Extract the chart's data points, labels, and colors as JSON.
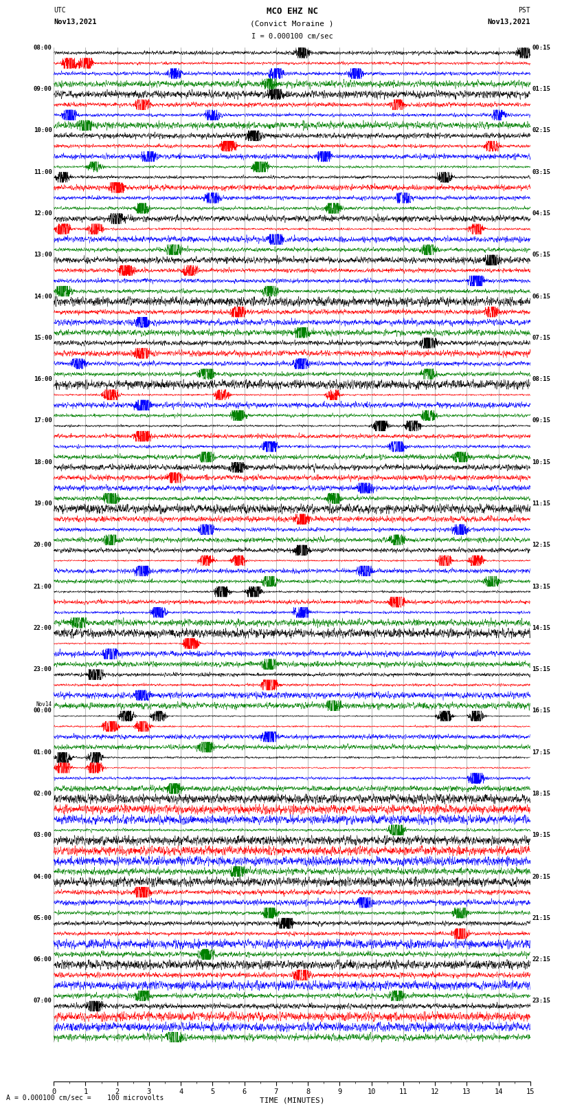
{
  "title_line1": "MCO EHZ NC",
  "title_line2": "(Convict Moraine )",
  "title_line3": "I = 0.000100 cm/sec",
  "left_header_line1": "UTC",
  "left_header_line2": "Nov13,2021",
  "right_header_line1": "PST",
  "right_header_line2": "Nov13,2021",
  "xlabel": "TIME (MINUTES)",
  "scale_label": "= 0.000100 cm/sec =    100 microvolts",
  "scale_prefix": "A",
  "bg_color": "#ffffff",
  "line_colors": [
    "#000000",
    "#ff0000",
    "#0000ff",
    "#008000"
  ],
  "utc_labels": [
    "08:00",
    "09:00",
    "10:00",
    "11:00",
    "12:00",
    "13:00",
    "14:00",
    "15:00",
    "16:00",
    "17:00",
    "18:00",
    "19:00",
    "20:00",
    "21:00",
    "22:00",
    "23:00",
    "Nov14\n00:00",
    "01:00",
    "02:00",
    "03:00",
    "04:00",
    "05:00",
    "06:00",
    "07:00"
  ],
  "pst_labels": [
    "00:15",
    "01:15",
    "02:15",
    "03:15",
    "04:15",
    "05:15",
    "06:15",
    "07:15",
    "08:15",
    "09:15",
    "10:15",
    "11:15",
    "12:15",
    "13:15",
    "14:15",
    "15:15",
    "16:15",
    "17:15",
    "18:15",
    "19:15",
    "20:15",
    "21:15",
    "22:15",
    "23:15"
  ],
  "n_rows": 24,
  "n_traces": 4,
  "minutes": 15,
  "samples_per_minute": 200,
  "noise_base": 0.3,
  "grid_color": "#888888",
  "tick_color": "#000000",
  "figure_width": 8.5,
  "figure_height": 16.13
}
